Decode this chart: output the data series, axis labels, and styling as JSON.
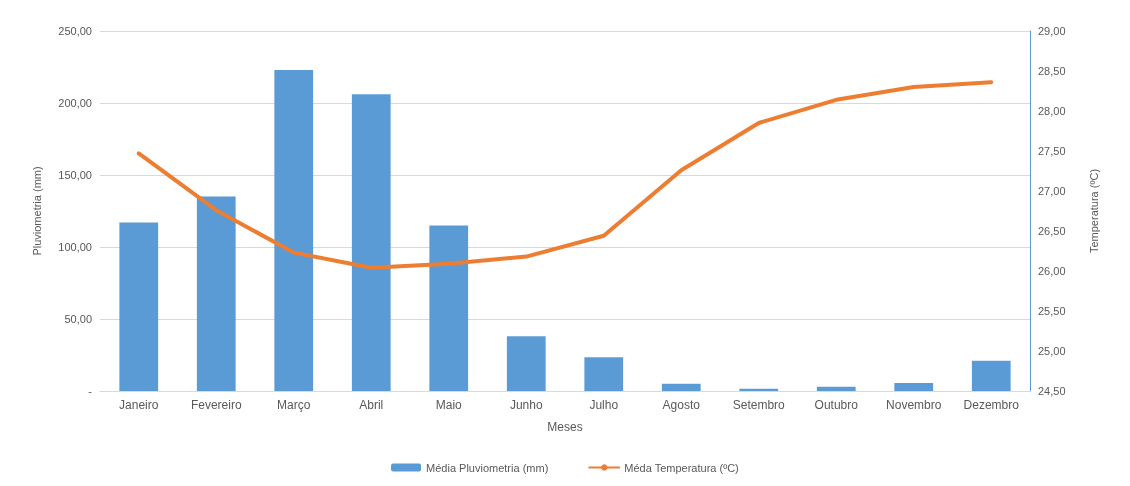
{
  "chart_data": {
    "type": "bar",
    "xlabel": "Meses",
    "ylabel": "Pluviometria (mm)",
    "y2label": "Temperatura (ºC)",
    "categories": [
      "Janeiro",
      "Fevereiro",
      "Março",
      "Abril",
      "Maio",
      "Junho",
      "Julho",
      "Agosto",
      "Setembro",
      "Outubro",
      "Novembro",
      "Dezembro"
    ],
    "series": [
      {
        "name": "Média Pluviometria (mm)",
        "color": "#5b9bd5",
        "values": [
          117,
          135,
          223,
          206,
          115,
          38,
          23.5,
          5,
          1.5,
          3,
          5.5,
          21
        ]
      },
      {
        "name": "Méda Temperatura (ºC)",
        "type": "line",
        "axis": "y2",
        "color": "#ed7d31",
        "marker": "none",
        "values": [
          27.47,
          26.76,
          26.23,
          26.04,
          26.09,
          26.18,
          26.44,
          27.26,
          27.85,
          28.14,
          28.3,
          28.36
        ]
      }
    ],
    "ylim": [
      0,
      250
    ],
    "yticks": [
      {
        "value": 0,
        "label": "-"
      },
      {
        "value": 50,
        "label": "50,00"
      },
      {
        "value": 100,
        "label": "100,00"
      },
      {
        "value": 150,
        "label": "150,00"
      },
      {
        "value": 200,
        "label": "200,00"
      },
      {
        "value": 250,
        "label": "250,00"
      }
    ],
    "y2lim": [
      24.5,
      29
    ],
    "y2ticks": [
      {
        "value": 24.5,
        "label": "24,50"
      },
      {
        "value": 25,
        "label": "25,00"
      },
      {
        "value": 25.5,
        "label": "25,50"
      },
      {
        "value": 26,
        "label": "26,00"
      },
      {
        "value": 26.5,
        "label": "26,50"
      },
      {
        "value": 27,
        "label": "27,00"
      },
      {
        "value": 27.5,
        "label": "27,50"
      },
      {
        "value": 28,
        "label": "28,00"
      },
      {
        "value": 28.5,
        "label": "28,50"
      },
      {
        "value": 29,
        "label": "29,00"
      }
    ],
    "grid": "y",
    "legend": "bottom"
  }
}
